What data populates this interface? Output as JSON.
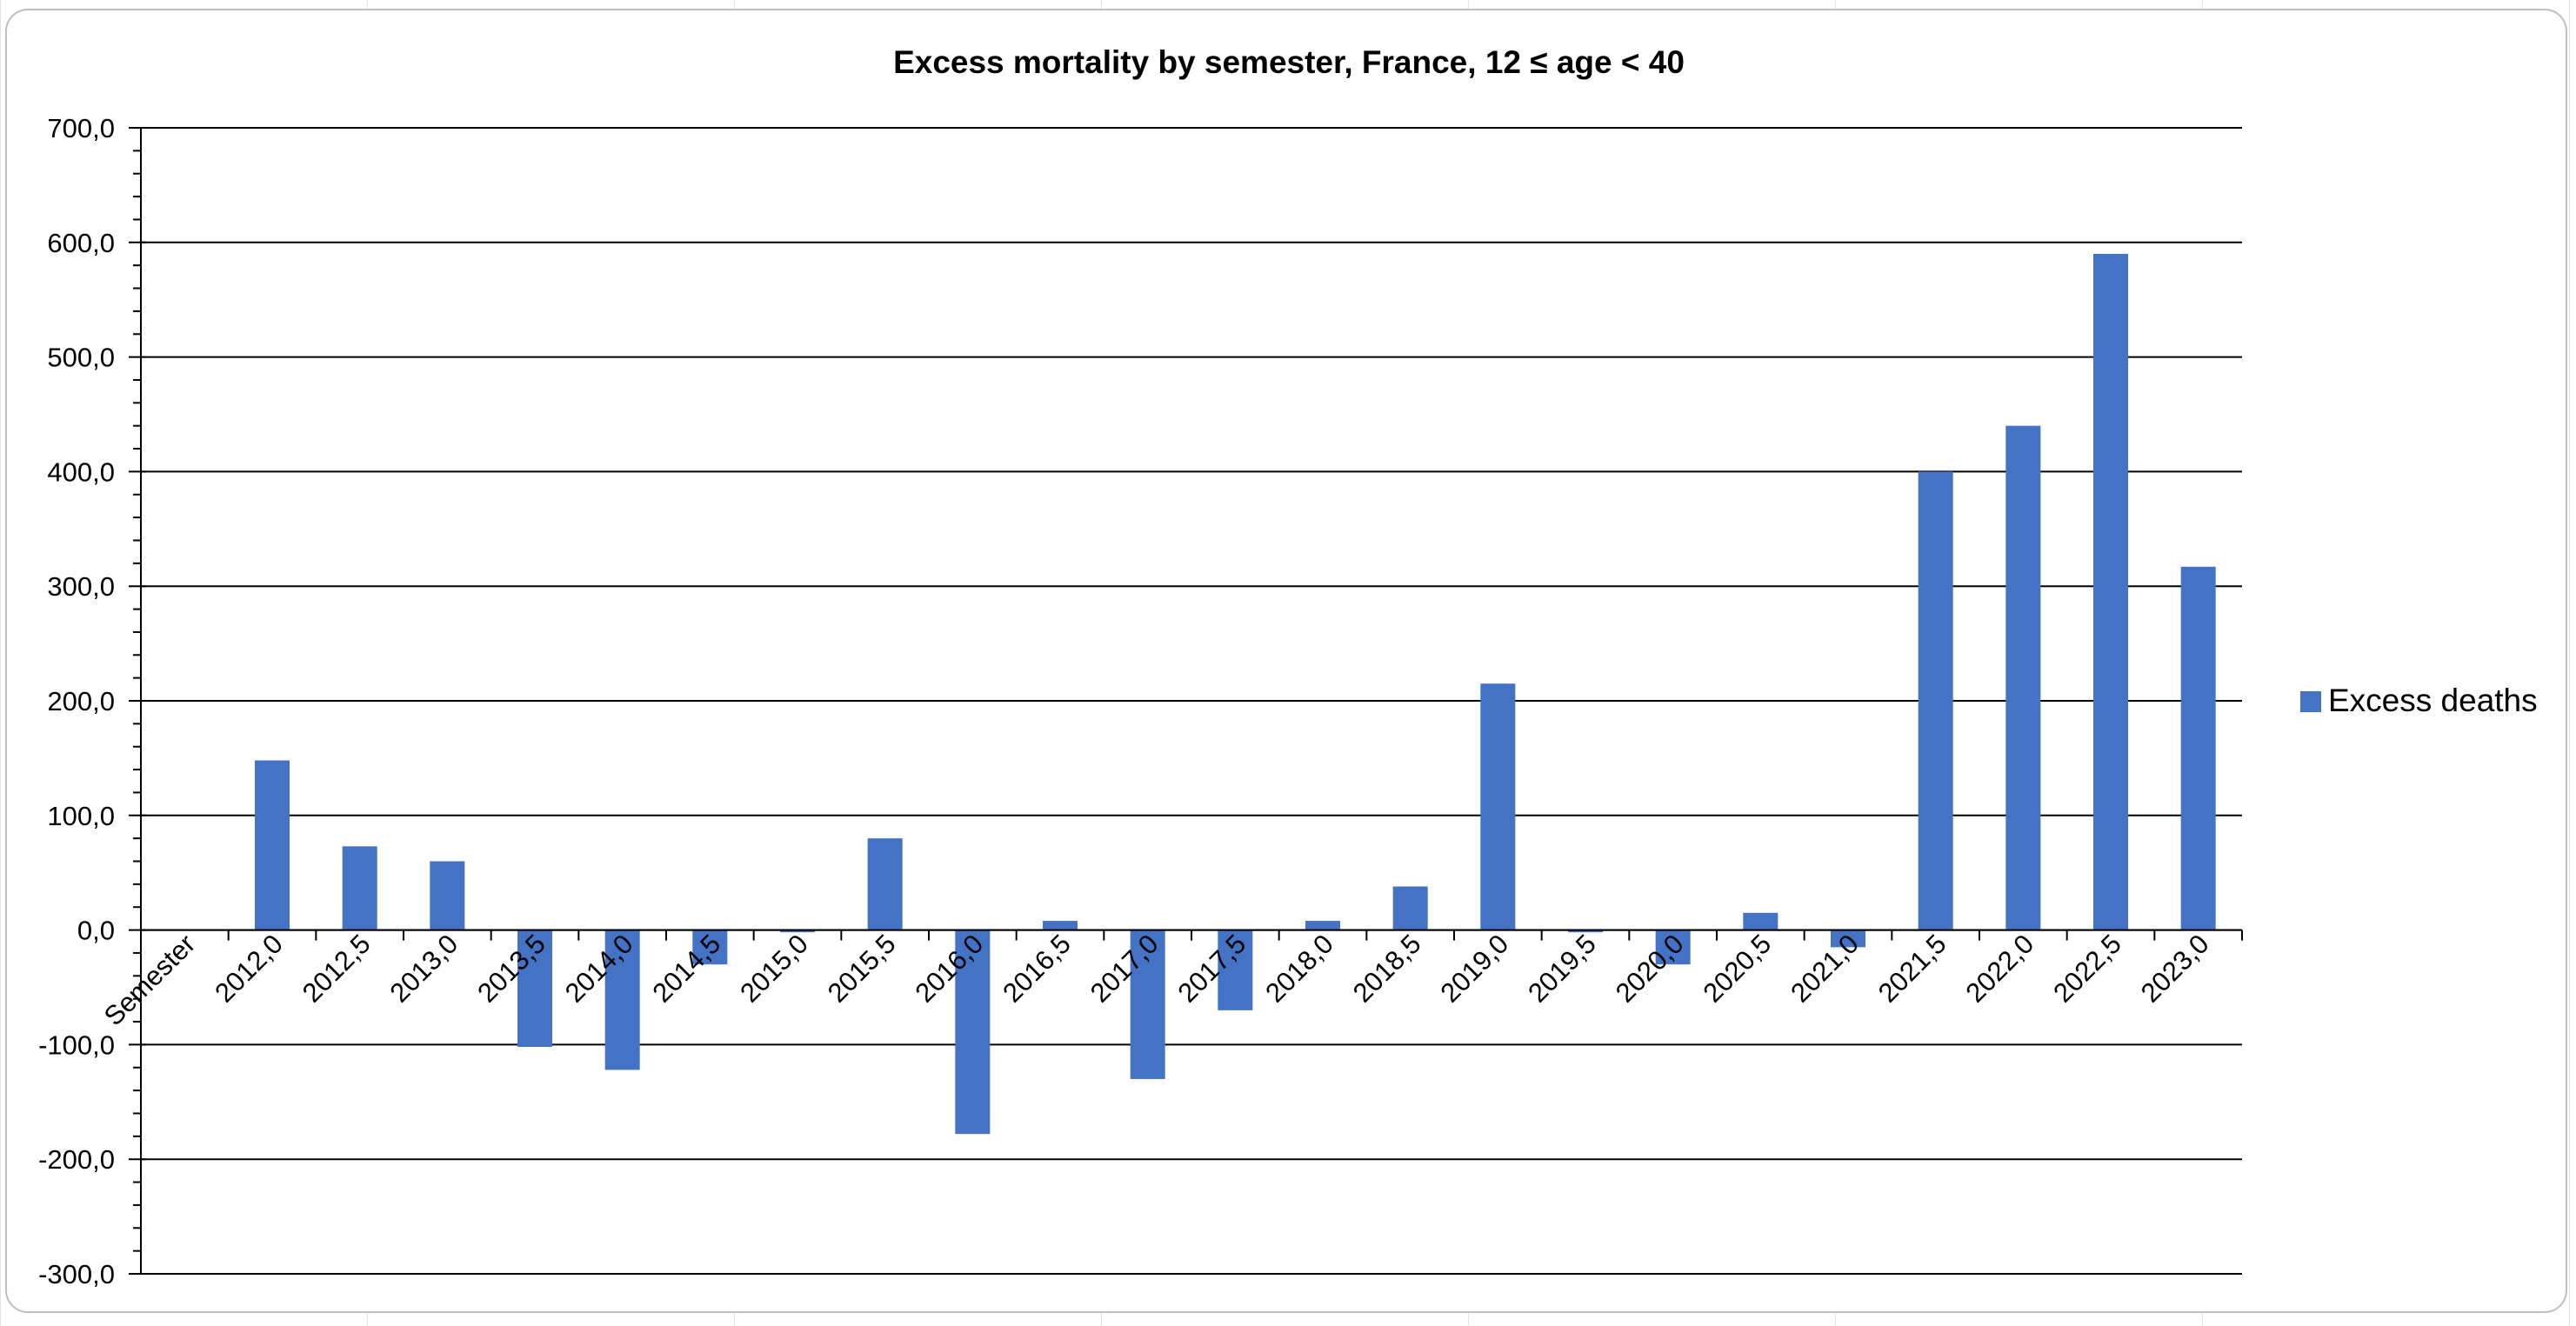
{
  "chart_data": {
    "type": "bar",
    "title": "Excess mortality by semester, France, 12 ≤ age < 40",
    "category_axis_label": "Semester",
    "categories": [
      "2012,0",
      "2012,5",
      "2013,0",
      "2013,5",
      "2014,0",
      "2014,5",
      "2015,0",
      "2015,5",
      "2016,0",
      "2016,5",
      "2017,0",
      "2017,5",
      "2018,0",
      "2018,5",
      "2019,0",
      "2019,5",
      "2020,0",
      "2020,5",
      "2021,0",
      "2021,5",
      "2022,0",
      "2022,5",
      "2023,0"
    ],
    "series": [
      {
        "name": "Excess deaths",
        "color": "#4472c4",
        "values": [
          148,
          73,
          60,
          -102,
          -122,
          -30,
          -2,
          80,
          -178,
          8,
          -130,
          -70,
          8,
          38,
          215,
          -2,
          -30,
          15,
          -15,
          400,
          440,
          590,
          317
        ]
      }
    ],
    "y_ticks": [
      "700,0",
      "600,0",
      "500,0",
      "400,0",
      "300,0",
      "200,0",
      "100,0",
      "0,0",
      "-100,0",
      "-200,0",
      "-300,0"
    ],
    "ylim": [
      -300,
      700
    ],
    "y_major_step": 100,
    "grid": true,
    "legend_position": "right"
  }
}
